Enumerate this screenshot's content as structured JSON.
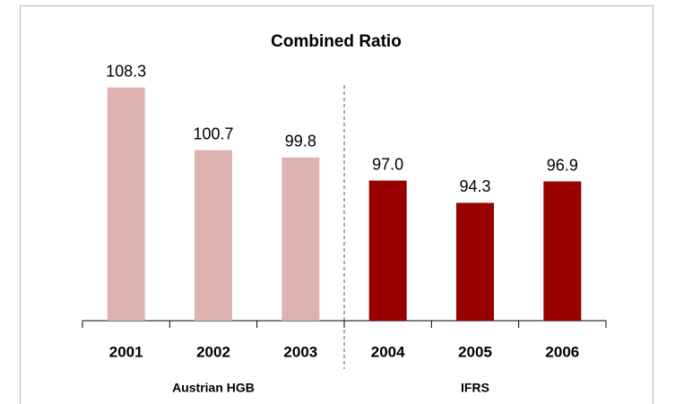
{
  "chart_data": {
    "type": "bar",
    "title": "Combined Ratio",
    "categories": [
      "2001",
      "2002",
      "2003",
      "2004",
      "2005",
      "2006"
    ],
    "series": [
      {
        "name": "Austrian HGB",
        "color": "#dfb2b2",
        "values": [
          108.3,
          100.7,
          99.8,
          null,
          null,
          null
        ],
        "value_labels": [
          "108.3",
          "100.7",
          "99.8",
          null,
          null,
          null
        ]
      },
      {
        "name": "IFRS",
        "color": "#990000",
        "values": [
          null,
          null,
          null,
          97.0,
          94.3,
          96.9
        ],
        "value_labels": [
          null,
          null,
          null,
          "97.0",
          "94.3",
          "96.9"
        ]
      }
    ],
    "ylim": [
      80,
      112
    ]
  }
}
